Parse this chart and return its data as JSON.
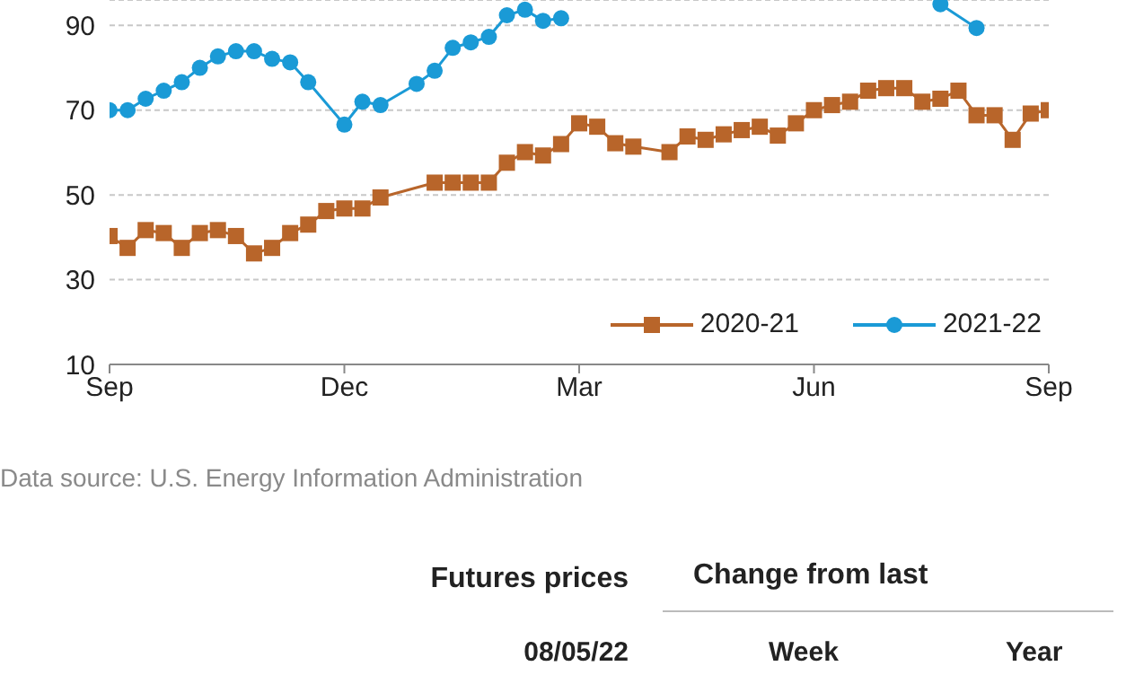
{
  "chart_data": {
    "type": "line",
    "categories": [
      "Sep",
      null,
      null,
      null,
      null,
      null,
      null,
      null,
      null,
      null,
      null,
      null,
      null,
      "Dec",
      null,
      null,
      null,
      null,
      null,
      null,
      null,
      null,
      null,
      null,
      null,
      null,
      "Mar",
      null,
      null,
      null,
      null,
      null,
      null,
      null,
      null,
      null,
      null,
      null,
      null,
      "Jun",
      null,
      null,
      null,
      null,
      null,
      null,
      null,
      null,
      null,
      null,
      null,
      null,
      "Sep"
    ],
    "ylim": [
      10,
      96
    ],
    "yticks": [
      10,
      30,
      50,
      70,
      90
    ],
    "grid": "y",
    "legend": "bottom right",
    "series": [
      {
        "name": "2020-21",
        "color": "#b8652a",
        "marker": "square",
        "values": [
          40.3,
          37.5,
          41.7,
          41,
          37.5,
          41,
          41.7,
          40.3,
          36.2,
          37.5,
          41,
          43,
          46.2,
          46.8,
          46.8,
          49.4,
          null,
          null,
          52.9,
          52.9,
          52.9,
          52.9,
          57.6,
          60.1,
          59.3,
          62,
          66.9,
          66.1,
          62.2,
          61.4,
          null,
          60.1,
          63.8,
          63,
          64.3,
          65.3,
          66.1,
          64,
          66.9,
          70,
          71.2,
          72,
          74.6,
          75.2,
          75.2,
          72,
          72.7,
          74.6,
          68.8,
          68.8,
          63,
          69.2,
          70
        ]
      },
      {
        "name": "2021-22",
        "color": "#1a9ad6",
        "marker": "circle",
        "values": [
          70,
          70,
          72.7,
          74.6,
          76.6,
          80,
          82.7,
          83.9,
          83.9,
          82.1,
          81.3,
          76.6,
          null,
          66.6,
          72,
          71.2,
          null,
          76.2,
          79.3,
          84.7,
          86,
          87.3,
          92.4,
          93.7,
          91.1,
          91.7,
          null,
          null,
          null,
          null,
          null,
          null,
          null,
          null,
          null,
          null,
          null,
          null,
          null,
          null,
          null,
          null,
          null,
          null,
          null,
          null,
          95,
          null,
          89.4,
          null,
          null,
          null,
          null
        ]
      }
    ],
    "annotations": [
      "Data source: U.S. Energy Information Administration",
      "Futures prices",
      "Change from last",
      "08/05/22",
      "Week",
      "Year"
    ]
  }
}
